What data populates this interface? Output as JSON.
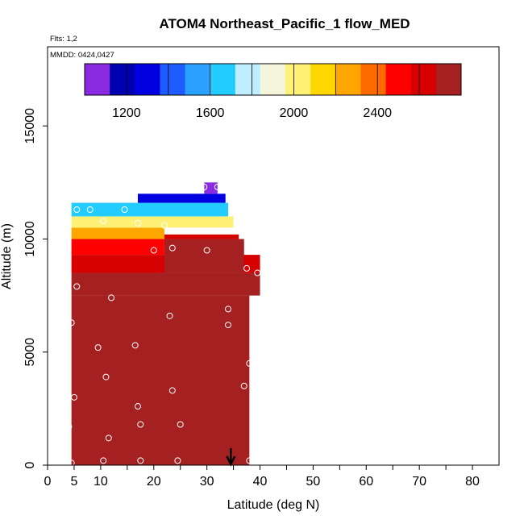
{
  "chart_data": {
    "type": "heatmap",
    "title": "ATOM4 Northeast_Pacific_1 flow_MED",
    "annotations": [
      "Flts: 1,2",
      "MMDD: 0424,0427"
    ],
    "xlabel": "Latitude (deg N)",
    "ylabel": "Altitude (m)",
    "xlim": [
      0,
      85
    ],
    "ylim": [
      0,
      18500
    ],
    "xticks": [
      0,
      5,
      10,
      20,
      30,
      40,
      50,
      60,
      70,
      80
    ],
    "yticks": [
      0,
      5000,
      10000,
      15000
    ],
    "grid": false,
    "colorbar": {
      "range": [
        1000,
        2800
      ],
      "tick_values": [
        1200,
        1600,
        2000,
        2400
      ],
      "colors": [
        "#8a2be2",
        "#0000b0",
        "#0000e0",
        "#1e5cff",
        "#2aa0ff",
        "#22ccff",
        "#bfefff",
        "#f5f5dc",
        "#fff176",
        "#ffd700",
        "#ffa500",
        "#ff6a00",
        "#ff0000",
        "#d60000",
        "#a52020"
      ]
    },
    "cells": [
      {
        "lat": [
          4.5,
          38
        ],
        "alt": [
          0,
          7500
        ],
        "value": 2750
      },
      {
        "lat": [
          4.5,
          40
        ],
        "alt": [
          7500,
          8500
        ],
        "value": 2700
      },
      {
        "lat": [
          4.5,
          40
        ],
        "alt": [
          8500,
          9300
        ],
        "value": 2600
      },
      {
        "lat": [
          22,
          37
        ],
        "alt": [
          8500,
          10000
        ],
        "value": 2750
      },
      {
        "lat": [
          4.5,
          22
        ],
        "alt": [
          9300,
          10000
        ],
        "value": 2450
      },
      {
        "lat": [
          22,
          36
        ],
        "alt": [
          10000,
          10200
        ],
        "value": 2600
      },
      {
        "lat": [
          4.5,
          22
        ],
        "alt": [
          10000,
          10500
        ],
        "value": 2250
      },
      {
        "lat": [
          4.5,
          35
        ],
        "alt": [
          10500,
          11000
        ],
        "value": 2050
      },
      {
        "lat": [
          4.5,
          34
        ],
        "alt": [
          11000,
          11600
        ],
        "value": 1700
      },
      {
        "lat": [
          17,
          33.5
        ],
        "alt": [
          11600,
          12000
        ],
        "value": 1250
      },
      {
        "lat": [
          29.5,
          32
        ],
        "alt": [
          12000,
          12500
        ],
        "value": 1050
      }
    ],
    "points": [
      {
        "lat": 4.0,
        "alt": 1700
      },
      {
        "lat": 4.5,
        "alt": 100
      },
      {
        "lat": 4.5,
        "alt": 6300
      },
      {
        "lat": 5.0,
        "alt": 3000
      },
      {
        "lat": 5.5,
        "alt": 7900
      },
      {
        "lat": 5.5,
        "alt": 11300
      },
      {
        "lat": 8.0,
        "alt": 11300
      },
      {
        "lat": 9.5,
        "alt": 5200
      },
      {
        "lat": 10.5,
        "alt": 10800
      },
      {
        "lat": 10.5,
        "alt": 200
      },
      {
        "lat": 11.0,
        "alt": 3900
      },
      {
        "lat": 11.5,
        "alt": 1200
      },
      {
        "lat": 12.0,
        "alt": 7400
      },
      {
        "lat": 14.5,
        "alt": 11300
      },
      {
        "lat": 16.5,
        "alt": 5300
      },
      {
        "lat": 17.0,
        "alt": 10700
      },
      {
        "lat": 17.0,
        "alt": 2600
      },
      {
        "lat": 17.5,
        "alt": 1800
      },
      {
        "lat": 17.5,
        "alt": 200
      },
      {
        "lat": 20.0,
        "alt": 9500
      },
      {
        "lat": 22.0,
        "alt": 10600
      },
      {
        "lat": 23.0,
        "alt": 6600
      },
      {
        "lat": 23.5,
        "alt": 9600
      },
      {
        "lat": 23.5,
        "alt": 3300
      },
      {
        "lat": 24.5,
        "alt": 200
      },
      {
        "lat": 25.0,
        "alt": 1800
      },
      {
        "lat": 29.5,
        "alt": 12300
      },
      {
        "lat": 30.0,
        "alt": 9500
      },
      {
        "lat": 32.0,
        "alt": 12300
      },
      {
        "lat": 34.0,
        "alt": 6900
      },
      {
        "lat": 34.0,
        "alt": 6200
      },
      {
        "lat": 37.0,
        "alt": 3500
      },
      {
        "lat": 37.5,
        "alt": 8700
      },
      {
        "lat": 38.0,
        "alt": 200
      },
      {
        "lat": 38.0,
        "alt": 4500
      },
      {
        "lat": 39.5,
        "alt": 8500
      }
    ],
    "arrow_lat": 34.5
  }
}
